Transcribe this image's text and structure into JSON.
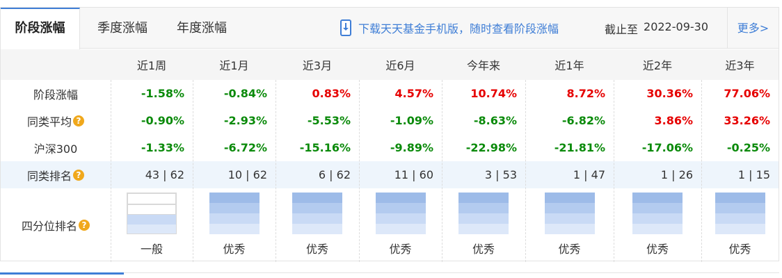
{
  "tabs": [
    {
      "label": "阶段涨幅",
      "active": true
    },
    {
      "label": "季度涨幅",
      "active": false
    },
    {
      "label": "年度涨幅",
      "active": false
    }
  ],
  "download_text": "下载天天基金手机版，随时查看阶段涨幅",
  "asof_label": "截止至",
  "asof_date": "2022-09-30",
  "more_label": "更多>",
  "columns": [
    "近1周",
    "近1月",
    "近3月",
    "近6月",
    "今年来",
    "近1年",
    "近2年",
    "近3年"
  ],
  "rows": [
    {
      "label": "阶段涨幅",
      "help": false,
      "values": [
        "-1.58%",
        "-0.84%",
        "0.83%",
        "4.57%",
        "10.74%",
        "8.72%",
        "30.36%",
        "77.06%"
      ]
    },
    {
      "label": "同类平均",
      "help": true,
      "values": [
        "-0.90%",
        "-2.93%",
        "-5.53%",
        "-1.09%",
        "-8.63%",
        "-6.82%",
        "3.86%",
        "33.26%"
      ]
    },
    {
      "label": "沪深300",
      "help": false,
      "values": [
        "-1.33%",
        "-6.72%",
        "-15.16%",
        "-9.89%",
        "-22.98%",
        "-21.81%",
        "-17.06%",
        "-0.25%"
      ]
    }
  ],
  "rank_row": {
    "label": "同类排名",
    "values": [
      "43 | 62",
      "10 | 62",
      "6 | 62",
      "11 | 60",
      "3 | 53",
      "1 | 47",
      "1 | 26",
      "1 | 15"
    ]
  },
  "quartile_row": {
    "label": "四分位排名",
    "labels": [
      "一般",
      "优秀",
      "优秀",
      "优秀",
      "优秀",
      "优秀",
      "优秀",
      "优秀"
    ],
    "levels": [
      2,
      4,
      4,
      4,
      4,
      4,
      4,
      4
    ]
  },
  "colors": {
    "positive": "#e60000",
    "negative": "#0a8a0a",
    "accent": "#3f7ed6",
    "help": "#f0a81c"
  }
}
